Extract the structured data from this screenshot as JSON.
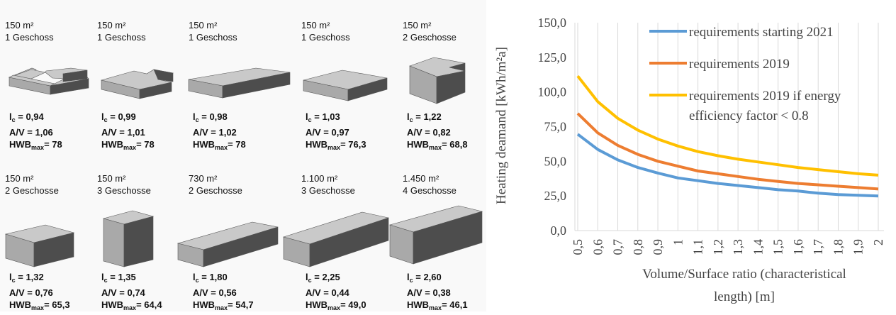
{
  "buildings": [
    {
      "area": "150 m²",
      "floors": "1 Geschoss",
      "lc_label": "l",
      "lc_sub": "c",
      "lc_value": "= 0,94",
      "av": "A/V = 1,06",
      "hwb_label": "HWB",
      "hwb_sub": "max",
      "hwb_value": "= 78",
      "shape": "ushape"
    },
    {
      "area": "150 m²",
      "floors": "1 Geschoss",
      "lc_label": "l",
      "lc_sub": "c",
      "lc_value": "= 0,99",
      "av": "A/V = 1,01",
      "hwb_label": "HWB",
      "hwb_sub": "max",
      "hwb_value": "= 78",
      "shape": "lshape"
    },
    {
      "area": "150 m²",
      "floors": "1 Geschoss",
      "lc_label": "l",
      "lc_sub": "c",
      "lc_value": "= 0,98",
      "av": "A/V = 1,02",
      "hwb_label": "HWB",
      "hwb_sub": "max",
      "hwb_value": "= 78",
      "shape": "longflat"
    },
    {
      "area": "150 m²",
      "floors": "1 Geschoss",
      "lc_label": "l",
      "lc_sub": "c",
      "lc_value": "= 1,03",
      "av": "A/V = 0,97",
      "hwb_label": "HWB",
      "hwb_sub": "max",
      "hwb_value": "= 76,3",
      "shape": "flat"
    },
    {
      "area": "150 m²",
      "floors": "2 Geschosse",
      "lc_label": "l",
      "lc_sub": "c",
      "lc_value": "= 1,22",
      "av": "A/V = 0,82",
      "hwb_label": "HWB",
      "hwb_sub": "max",
      "hwb_value": "= 68,8",
      "shape": "lcube"
    },
    {
      "area": "150 m²",
      "floors": "2 Geschosse",
      "lc_label": "l",
      "lc_sub": "c",
      "lc_value": "= 1,32",
      "av": "A/V = 0,76",
      "hwb_label": "HWB",
      "hwb_sub": "max",
      "hwb_value": "= 65,3",
      "shape": "box"
    },
    {
      "area": "150 m²",
      "floors": "3 Geschosse",
      "lc_label": "l",
      "lc_sub": "c",
      "lc_value": "= 1,35",
      "av": "A/V = 0,74",
      "hwb_label": "HWB",
      "hwb_sub": "max",
      "hwb_value": "= 64,4",
      "shape": "tall"
    },
    {
      "area": "730 m²",
      "floors": "2 Geschosse",
      "lc_label": "l",
      "lc_sub": "c",
      "lc_value": "= 1,80",
      "av": "A/V = 0,56",
      "hwb_label": "HWB",
      "hwb_sub": "max",
      "hwb_value": "= 54,7",
      "shape": "long2"
    },
    {
      "area": "1.100 m²",
      "floors": "3 Geschosse",
      "lc_label": "l",
      "lc_sub": "c",
      "lc_value": "= 2,25",
      "av": "A/V = 0,44",
      "hwb_label": "HWB",
      "hwb_sub": "max",
      "hwb_value": "= 49,0",
      "shape": "long3"
    },
    {
      "area": "1.450 m²",
      "floors": "4 Geschosse",
      "lc_label": "l",
      "lc_sub": "c",
      "lc_value": "= 2,60",
      "av": "A/V = 0,38",
      "hwb_label": "HWB",
      "hwb_sub": "max",
      "hwb_value": "= 46,1",
      "shape": "long4"
    }
  ],
  "shape_colors": {
    "top": "#c9c9c9",
    "front": "#a9a9a9",
    "side": "#4d4d4d"
  },
  "chart_data": {
    "type": "line",
    "ylabel": "Heating deamand [kWh/m²a]",
    "xlabel": "Volume/Surface ratio (characteristical length) [m]",
    "xlabel_lines": [
      "Volume/Surface ratio (characteristical",
      "length) [m]"
    ],
    "ylim": [
      0,
      150
    ],
    "yticks": [
      0,
      25,
      50,
      75,
      100,
      125,
      150
    ],
    "ytick_labels": [
      "0,0",
      "25,0",
      "50,0",
      "75,0",
      "100,0",
      "125,0",
      "150,0"
    ],
    "xlim": [
      0.5,
      2.0
    ],
    "xticks": [
      0.5,
      0.6,
      0.7,
      0.8,
      0.9,
      1.0,
      1.1,
      1.2,
      1.3,
      1.4,
      1.5,
      1.6,
      1.7,
      1.8,
      1.9,
      2.0
    ],
    "xtick_labels": [
      "0,5",
      "0,6",
      "0,7",
      "0,8",
      "0,9",
      "1",
      "1,1",
      "1,2",
      "1,3",
      "1,4",
      "1,5",
      "1,6",
      "1,7",
      "1,8",
      "1,9",
      "2"
    ],
    "grid": "vertical",
    "legend": "top-right",
    "x": [
      0.5,
      0.6,
      0.7,
      0.8,
      0.9,
      1.0,
      1.1,
      1.2,
      1.3,
      1.4,
      1.5,
      1.6,
      1.7,
      1.8,
      1.9,
      2.0
    ],
    "series": [
      {
        "name": "requirements starting 2021",
        "color": "#5b9bd5",
        "values": [
          69.5,
          58.5,
          51.0,
          45.5,
          41.5,
          38.0,
          36.0,
          34.0,
          32.5,
          31.0,
          29.5,
          28.5,
          27.0,
          26.0,
          25.5,
          25.0
        ]
      },
      {
        "name": "requirements 2019",
        "color": "#ed7d31",
        "values": [
          84.5,
          70.5,
          61.5,
          55.0,
          50.0,
          46.5,
          43.0,
          41.0,
          39.0,
          37.0,
          35.5,
          34.0,
          33.0,
          32.0,
          31.0,
          30.0
        ]
      },
      {
        "name": "requirements  2019 if energy efficiency factor < 0.8",
        "legend_lines": [
          "requirements  2019 if energy",
          "efficiency factor < 0.8"
        ],
        "color": "#ffc000",
        "values": [
          111.5,
          93.0,
          81.0,
          72.5,
          66.0,
          61.0,
          57.0,
          54.0,
          51.5,
          49.5,
          47.5,
          45.5,
          44.0,
          42.5,
          41.0,
          40.0
        ]
      }
    ]
  }
}
